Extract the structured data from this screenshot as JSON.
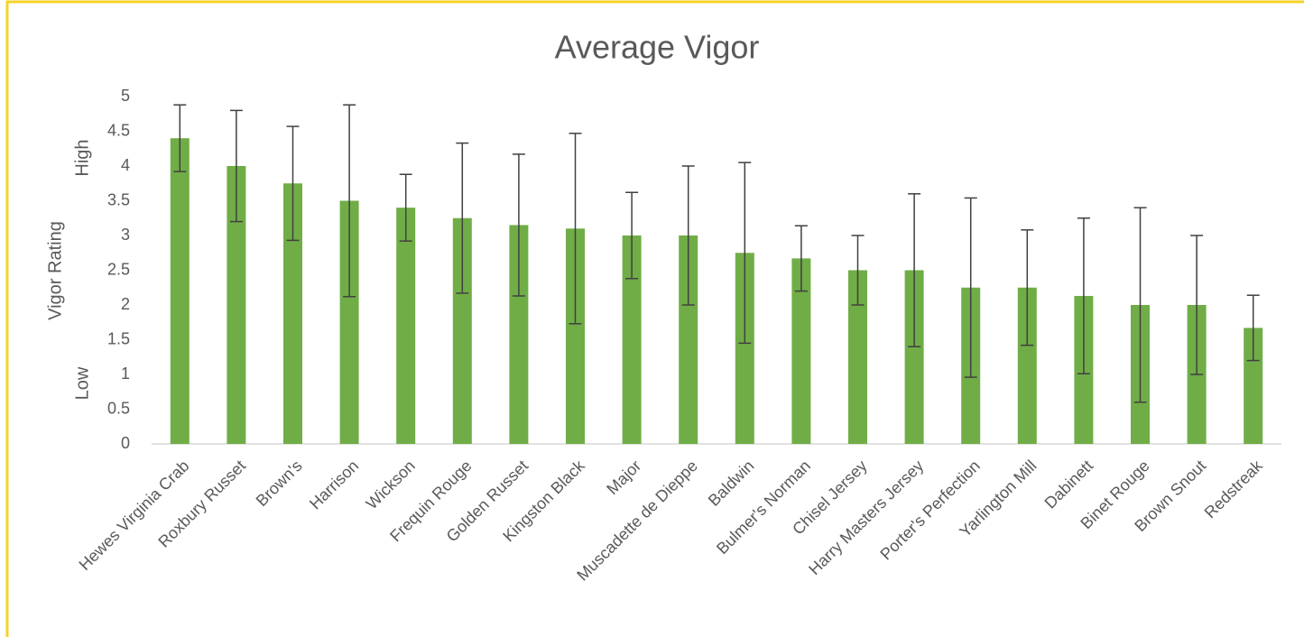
{
  "chart_data": {
    "type": "bar",
    "title": "Average Vigor",
    "y_label": "Vigor Rating",
    "annotations": [
      "High",
      "Low"
    ],
    "categories": [
      "Hewes Virginia Crab",
      "Roxbury Russet",
      "Brown's",
      "Harrison",
      "Wickson",
      "Frequin Rouge",
      "Golden Russet",
      "Kingston Black",
      "Major",
      "Muscadette de Dieppe",
      "Baldwin",
      "Bulmer's Norman",
      "Chisel Jersey",
      "Harry Masters Jersey",
      "Porter's Perfection",
      "Yarlington Mill",
      "Dabinett",
      "Binet Rouge",
      "Brown Snout",
      "Redstreak"
    ],
    "values": [
      4.4,
      4.0,
      3.75,
      3.5,
      3.4,
      3.25,
      3.15,
      3.1,
      3.0,
      3.0,
      2.75,
      2.67,
      2.5,
      2.5,
      2.25,
      2.25,
      2.13,
      2.0,
      2.0,
      1.67
    ],
    "errors": [
      0.48,
      0.8,
      0.82,
      1.38,
      0.48,
      1.08,
      1.02,
      1.37,
      0.62,
      1.0,
      1.3,
      0.47,
      0.5,
      1.1,
      1.29,
      0.83,
      1.12,
      1.4,
      1.0,
      0.47
    ],
    "color": "#70ad47",
    "error_color": "#404040",
    "ylim": [
      0,
      5
    ],
    "yticks": [
      0,
      0.5,
      1,
      1.5,
      2,
      2.5,
      3,
      3.5,
      4,
      4.5,
      5
    ],
    "grid": false
  }
}
